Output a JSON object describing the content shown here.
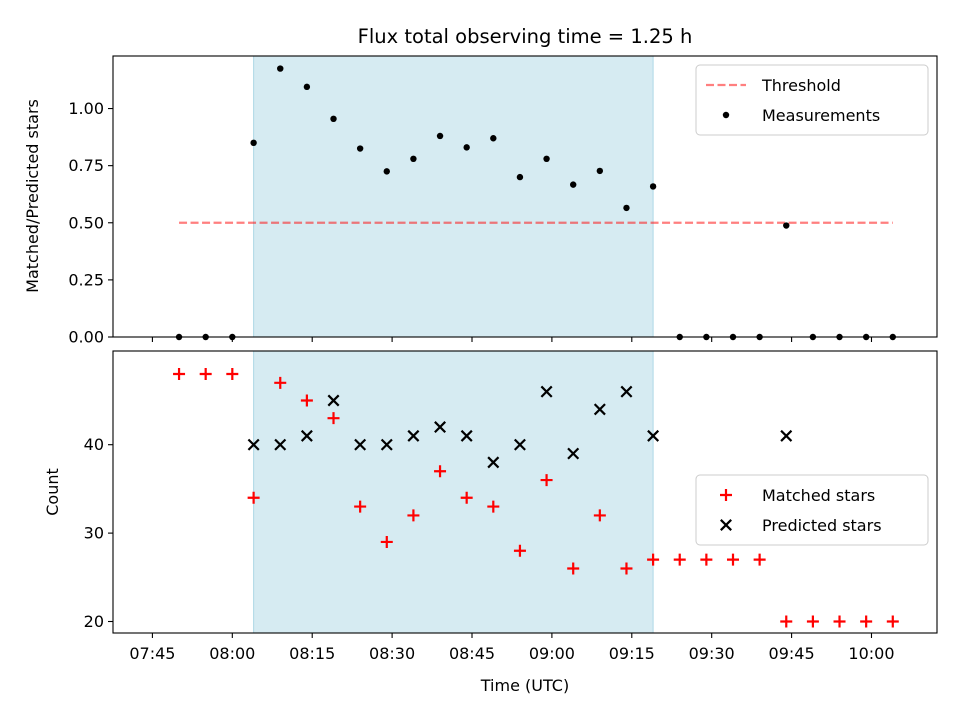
{
  "chart_data": {
    "title": "Flux total observing time = 1.25 h",
    "xlabel": "Time (UTC)",
    "x_tick_labels": [
      "07:45",
      "08:00",
      "08:15",
      "08:30",
      "08:45",
      "09:00",
      "09:15",
      "09:30",
      "09:45",
      "10:00"
    ],
    "shaded_interval": [
      "08:04",
      "09:19"
    ],
    "shade_color": "#add8e6",
    "panels": [
      {
        "type": "scatter",
        "ylabel": "Matched/Predicted stars",
        "ylim": [
          0,
          1.23
        ],
        "y_tick_labels": [
          "0.00",
          "0.25",
          "0.50",
          "0.75",
          "1.00"
        ],
        "legend_position": "upper right",
        "threshold": {
          "name": "Threshold",
          "value": 0.5,
          "x_range": [
            "07:50",
            "10:04"
          ],
          "color": "#ff0000",
          "style": "dashed"
        },
        "series": [
          {
            "name": "Measurements",
            "color": "#000000",
            "marker": "dot",
            "points": [
              [
                "07:50",
                0.0
              ],
              [
                "07:55",
                0.0
              ],
              [
                "08:00",
                0.0
              ],
              [
                "08:04",
                0.85
              ],
              [
                "08:09",
                1.175
              ],
              [
                "08:14",
                1.095
              ],
              [
                "08:19",
                0.955
              ],
              [
                "08:24",
                0.825
              ],
              [
                "08:29",
                0.725
              ],
              [
                "08:34",
                0.78
              ],
              [
                "08:39",
                0.88
              ],
              [
                "08:44",
                0.83
              ],
              [
                "08:49",
                0.87
              ],
              [
                "08:54",
                0.7
              ],
              [
                "08:59",
                0.78
              ],
              [
                "09:04",
                0.667
              ],
              [
                "09:09",
                0.727
              ],
              [
                "09:14",
                0.565
              ],
              [
                "09:19",
                0.659
              ],
              [
                "09:24",
                0.0
              ],
              [
                "09:29",
                0.0
              ],
              [
                "09:34",
                0.0
              ],
              [
                "09:39",
                0.0
              ],
              [
                "09:44",
                0.488
              ],
              [
                "09:49",
                0.0
              ],
              [
                "09:54",
                0.0
              ],
              [
                "09:59",
                0.0
              ],
              [
                "10:04",
                0.0
              ]
            ]
          }
        ]
      },
      {
        "type": "scatter",
        "ylabel": "Count",
        "ylim": [
          18.7,
          50.6
        ],
        "y_tick_labels": [
          "20",
          "30",
          "40"
        ],
        "legend_position": "center right",
        "series": [
          {
            "name": "Matched stars",
            "color": "#ff0000",
            "marker": "plus",
            "points": [
              [
                "07:50",
                48
              ],
              [
                "07:55",
                48
              ],
              [
                "08:00",
                48
              ],
              [
                "08:04",
                34
              ],
              [
                "08:09",
                47
              ],
              [
                "08:14",
                45
              ],
              [
                "08:19",
                43
              ],
              [
                "08:24",
                33
              ],
              [
                "08:29",
                29
              ],
              [
                "08:34",
                32
              ],
              [
                "08:39",
                37
              ],
              [
                "08:44",
                34
              ],
              [
                "08:49",
                33
              ],
              [
                "08:54",
                28
              ],
              [
                "08:59",
                36
              ],
              [
                "09:04",
                26
              ],
              [
                "09:09",
                32
              ],
              [
                "09:14",
                26
              ],
              [
                "09:19",
                27
              ],
              [
                "09:24",
                27
              ],
              [
                "09:29",
                27
              ],
              [
                "09:34",
                27
              ],
              [
                "09:39",
                27
              ],
              [
                "09:44",
                20
              ],
              [
                "09:49",
                20
              ],
              [
                "09:54",
                20
              ],
              [
                "09:59",
                20
              ],
              [
                "10:04",
                20
              ]
            ]
          },
          {
            "name": "Predicted stars",
            "color": "#000000",
            "marker": "x",
            "points": [
              [
                "08:04",
                40
              ],
              [
                "08:09",
                40
              ],
              [
                "08:14",
                41
              ],
              [
                "08:19",
                45
              ],
              [
                "08:24",
                40
              ],
              [
                "08:29",
                40
              ],
              [
                "08:34",
                41
              ],
              [
                "08:39",
                42
              ],
              [
                "08:44",
                41
              ],
              [
                "08:49",
                38
              ],
              [
                "08:54",
                40
              ],
              [
                "08:59",
                46
              ],
              [
                "09:04",
                39
              ],
              [
                "09:09",
                44
              ],
              [
                "09:14",
                46
              ],
              [
                "09:19",
                41
              ],
              [
                "09:44",
                41
              ]
            ]
          }
        ]
      }
    ]
  }
}
